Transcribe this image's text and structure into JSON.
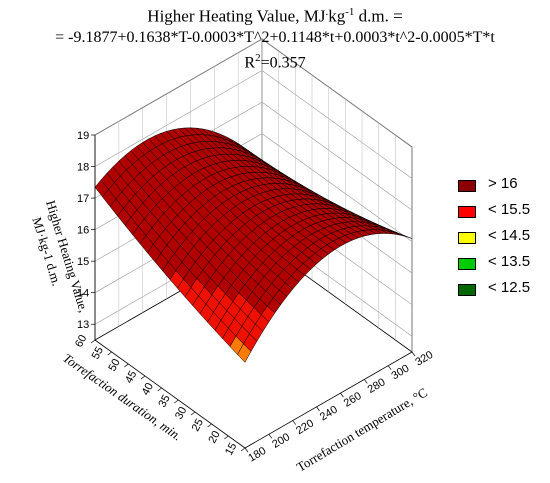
{
  "title": {
    "line1_text": "Higher Heating Value, MJ",
    "line1_sup1": ".",
    "line1_kg": "kg",
    "line1_sup2": "-1",
    "line1_tail": " d.m. =",
    "line2": "= -9.1877+0.1638*T-0.0003*T^2+0.1148*t+0.0003*t^2-0.0005*T*t",
    "line3_r": "R",
    "line3_sup": "2",
    "line3_tail": "=0.357"
  },
  "legend": {
    "items": [
      {
        "label": "> 16",
        "color": "#8b0000"
      },
      {
        "label": "< 15.5",
        "color": "#ff0000"
      },
      {
        "label": "< 14.5",
        "color": "#ffff00"
      },
      {
        "label": "< 13.5",
        "color": "#00cc00"
      },
      {
        "label": "< 12.5",
        "color": "#006600"
      }
    ]
  },
  "chart_data": {
    "type": "surface3d",
    "title": "Higher Heating Value, MJ·kg-1 d.m. = -9.1877+0.1638*T-0.0003*T^2+0.1148*t+0.0003*t^2-0.0005*T*t",
    "r_squared": "R2=0.357",
    "equation": {
      "c0": -9.1877,
      "T": 0.1638,
      "T2": -0.0003,
      "t": 0.1148,
      "t2": 0.0003,
      "Tt": -0.0005
    },
    "x_label": "Torrefaction temperature, °C",
    "x_ticks": [
      "180",
      "200",
      "220",
      "240",
      "260",
      "280",
      "300",
      "320"
    ],
    "x_range": [
      180,
      320
    ],
    "y_label": "Torrefaction duration, min.",
    "y_ticks": [
      "15",
      "20",
      "25",
      "30",
      "35",
      "40",
      "45",
      "50",
      "55",
      "60"
    ],
    "y_range": [
      15,
      60
    ],
    "z_label_line1": "Higher Heating Value,",
    "z_label_line2": "MJ·kg-1 d.m.",
    "z_ticks": [
      "13",
      "14",
      "15",
      "16",
      "17",
      "18",
      "19"
    ],
    "z_range": [
      12.5,
      19
    ],
    "color_thresholds": [
      12.5,
      13.5,
      14.5,
      15.5,
      16
    ],
    "grid": true
  }
}
